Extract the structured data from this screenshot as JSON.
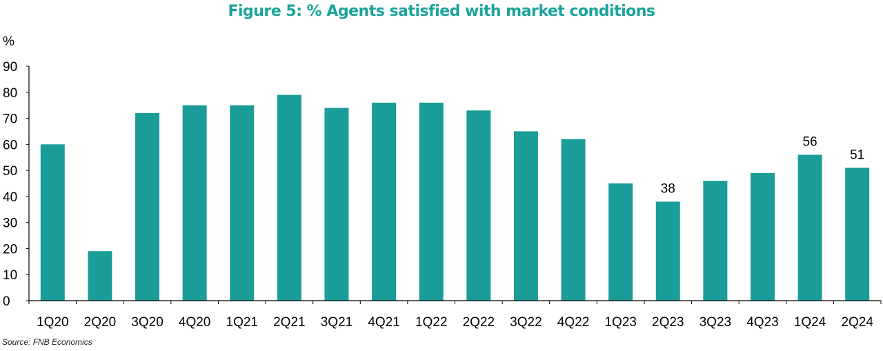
{
  "title": "Figure 5: % Agents satisfied with market conditions",
  "source": "Source: FNB Economics",
  "colors": {
    "bar": "#1a9c99",
    "title": "#1aa39c"
  },
  "chart_data": {
    "type": "bar",
    "title": "Figure 5: % Agents satisfied with market conditions",
    "ylabel": "%",
    "xlabel": "",
    "ylim": [
      0,
      90
    ],
    "yticks": [
      0,
      10,
      20,
      30,
      40,
      50,
      60,
      70,
      80,
      90
    ],
    "grid": false,
    "legend": "none",
    "categories": [
      "1Q20",
      "2Q20",
      "3Q20",
      "4Q20",
      "1Q21",
      "2Q21",
      "3Q21",
      "4Q21",
      "1Q22",
      "2Q22",
      "3Q22",
      "4Q22",
      "1Q23",
      "2Q23",
      "3Q23",
      "4Q23",
      "1Q24",
      "2Q24"
    ],
    "values": [
      60,
      19,
      72,
      75,
      75,
      79,
      74,
      76,
      76,
      73,
      65,
      62,
      45,
      38,
      46,
      49,
      56,
      51
    ],
    "data_labels": [
      {
        "category": "2Q23",
        "text": "38"
      },
      {
        "category": "1Q24",
        "text": "56"
      },
      {
        "category": "2Q24",
        "text": "51"
      }
    ]
  }
}
